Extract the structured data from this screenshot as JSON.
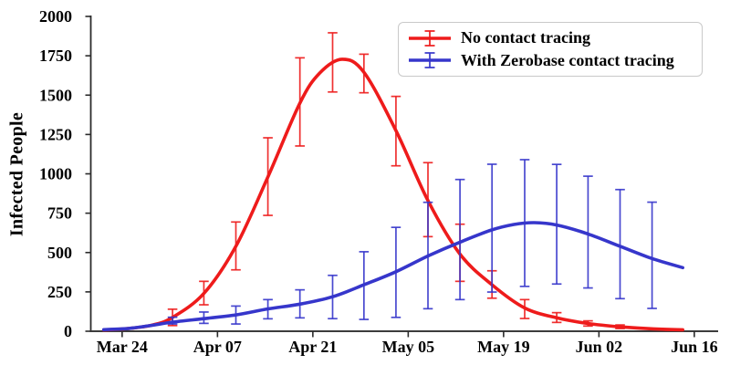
{
  "chart_data": {
    "type": "line",
    "title": "",
    "xlabel": "",
    "ylabel": "Infected People",
    "ylim": [
      0,
      2000
    ],
    "ytick_labels": [
      "0",
      "250",
      "500",
      "750",
      "1000",
      "1250",
      "1500",
      "1750",
      "2000"
    ],
    "xtick_labels": [
      "Mar 24",
      "Apr 07",
      "Apr 21",
      "May 05",
      "May 19",
      "Jun 02",
      "Jun 16"
    ],
    "xtick_days": [
      0,
      14,
      28,
      42,
      56,
      70,
      84
    ],
    "xlim_days": [
      -4.6,
      87.5
    ],
    "grid": false,
    "legend_position": "upper right",
    "axis_color": "#2b2b2b",
    "series": [
      {
        "name": "No contact tracing",
        "color": "#ee1b1b",
        "curve": [
          [
            -2.7,
            8
          ],
          [
            1,
            18
          ],
          [
            4.5,
            40
          ],
          [
            7.4,
            88
          ],
          [
            12,
            240
          ],
          [
            16.7,
            540
          ],
          [
            21.4,
            980
          ],
          [
            26.1,
            1450
          ],
          [
            29,
            1640
          ],
          [
            32.3,
            1728
          ],
          [
            35.5,
            1645
          ],
          [
            40.2,
            1275
          ],
          [
            44.9,
            830
          ],
          [
            49.6,
            490
          ],
          [
            54.3,
            295
          ],
          [
            59.1,
            148
          ],
          [
            63.8,
            85
          ],
          [
            68.4,
            49
          ],
          [
            73.1,
            28
          ],
          [
            78,
            15
          ],
          [
            82.3,
            9
          ]
        ],
        "errorbars": [
          {
            "day": 7.4,
            "y": 88,
            "lo": 36,
            "hi": 140
          },
          {
            "day": 12.0,
            "y": 242,
            "lo": 168,
            "hi": 317
          },
          {
            "day": 16.7,
            "y": 540,
            "lo": 390,
            "hi": 694
          },
          {
            "day": 21.4,
            "y": 982,
            "lo": 736,
            "hi": 1229
          },
          {
            "day": 26.1,
            "y": 1455,
            "lo": 1177,
            "hi": 1737
          },
          {
            "day": 30.9,
            "y": 1708,
            "lo": 1520,
            "hi": 1896
          },
          {
            "day": 35.5,
            "y": 1640,
            "lo": 1515,
            "hi": 1760
          },
          {
            "day": 40.2,
            "y": 1272,
            "lo": 1051,
            "hi": 1492
          },
          {
            "day": 44.9,
            "y": 836,
            "lo": 601,
            "hi": 1071
          },
          {
            "day": 49.6,
            "y": 498,
            "lo": 317,
            "hi": 680
          },
          {
            "day": 54.3,
            "y": 297,
            "lo": 210,
            "hi": 384
          },
          {
            "day": 59.1,
            "y": 141,
            "lo": 81,
            "hi": 201
          },
          {
            "day": 63.8,
            "y": 87,
            "lo": 56,
            "hi": 118
          },
          {
            "day": 68.4,
            "y": 49,
            "lo": 33,
            "hi": 66
          },
          {
            "day": 73.1,
            "y": 28,
            "lo": 17,
            "hi": 40
          }
        ]
      },
      {
        "name": "With Zerobase contact tracing",
        "color": "#3636cb",
        "curve": [
          [
            -2.7,
            10
          ],
          [
            1,
            18
          ],
          [
            4.5,
            38
          ],
          [
            7.4,
            58
          ],
          [
            12,
            80
          ],
          [
            16.7,
            104
          ],
          [
            21.4,
            142
          ],
          [
            26.1,
            172
          ],
          [
            30.9,
            219
          ],
          [
            35.5,
            295
          ],
          [
            40.2,
            378
          ],
          [
            44.9,
            478
          ],
          [
            49.6,
            566
          ],
          [
            54.3,
            644
          ],
          [
            57.5,
            678
          ],
          [
            60.5,
            690
          ],
          [
            63.8,
            675
          ],
          [
            68.4,
            618
          ],
          [
            73.1,
            540
          ],
          [
            77.8,
            462
          ],
          [
            82.3,
            404
          ]
        ],
        "errorbars": [
          {
            "day": 7.4,
            "y": 65,
            "lo": 46,
            "hi": 89
          },
          {
            "day": 12.0,
            "y": 85,
            "lo": 50,
            "hi": 122
          },
          {
            "day": 16.7,
            "y": 104,
            "lo": 46,
            "hi": 160
          },
          {
            "day": 21.4,
            "y": 142,
            "lo": 79,
            "hi": 201
          },
          {
            "day": 26.1,
            "y": 172,
            "lo": 85,
            "hi": 263
          },
          {
            "day": 30.9,
            "y": 219,
            "lo": 80,
            "hi": 355
          },
          {
            "day": 35.5,
            "y": 295,
            "lo": 75,
            "hi": 505
          },
          {
            "day": 40.2,
            "y": 376,
            "lo": 88,
            "hi": 660
          },
          {
            "day": 44.9,
            "y": 480,
            "lo": 143,
            "hi": 819
          },
          {
            "day": 49.6,
            "y": 566,
            "lo": 201,
            "hi": 964
          },
          {
            "day": 54.3,
            "y": 648,
            "lo": 249,
            "hi": 1061
          },
          {
            "day": 59.1,
            "y": 687,
            "lo": 285,
            "hi": 1090
          },
          {
            "day": 63.8,
            "y": 675,
            "lo": 300,
            "hi": 1060
          },
          {
            "day": 68.4,
            "y": 619,
            "lo": 275,
            "hi": 985
          },
          {
            "day": 73.1,
            "y": 540,
            "lo": 207,
            "hi": 900
          },
          {
            "day": 77.8,
            "y": 478,
            "lo": 145,
            "hi": 820
          }
        ]
      }
    ]
  }
}
